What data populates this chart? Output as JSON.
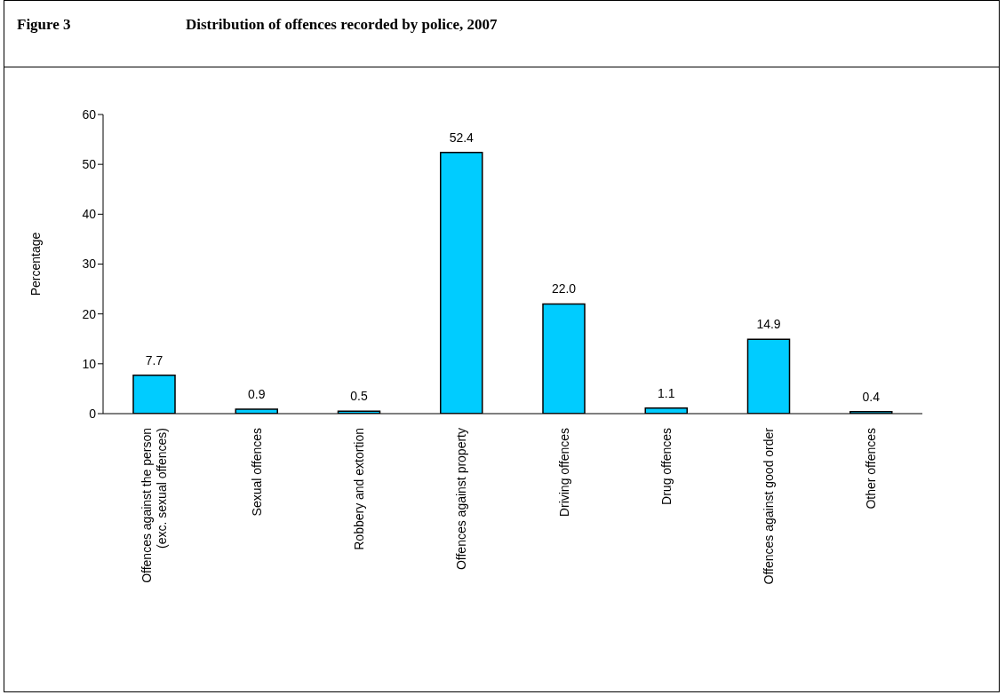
{
  "chart_data": {
    "type": "bar",
    "title": "Figure 3",
    "subtitle": "Distribution of offences recorded by police, 2007",
    "ylabel": "Percentage",
    "categories": [
      "Offences against the person (exc. sexual offences)",
      "Sexual offences",
      "Robbery and extortion",
      "Offences against property",
      "Driving offences",
      "Drug offences",
      "Offences against good order",
      "Other offences"
    ],
    "values": [
      7.7,
      0.9,
      0.5,
      52.4,
      22.0,
      1.1,
      14.9,
      0.4
    ],
    "value_labels": [
      "7.7",
      "0.9",
      "0.5",
      "52.4",
      "22.0",
      "1.1",
      "14.9",
      "0.4"
    ],
    "color": "#00ccff",
    "ylim": [
      0,
      60
    ],
    "yticks": [
      0,
      10,
      20,
      30,
      40,
      50,
      60
    ],
    "grid": false,
    "legend": false
  }
}
